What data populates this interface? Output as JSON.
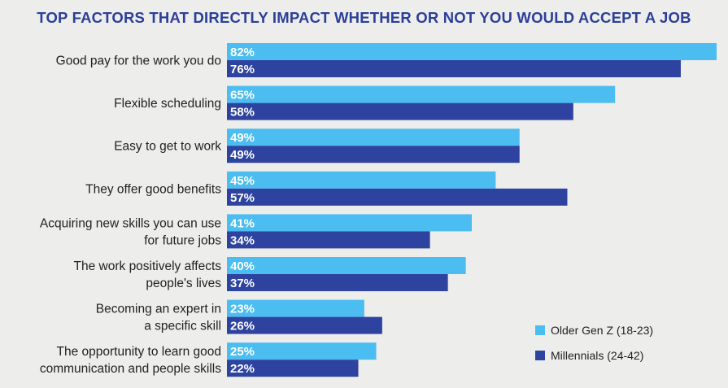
{
  "colors": {
    "title": "#2b3f99",
    "older_gen_z": "#4cbdf0",
    "millennials": "#2e43a0"
  },
  "chart_data": {
    "type": "bar",
    "orientation": "horizontal",
    "title": "TOP FACTORS THAT DIRECTLY IMPACT WHETHER OR NOT YOU WOULD ACCEPT A JOB",
    "value_suffix": "%",
    "xlim": [
      0,
      82
    ],
    "grid": false,
    "legend_position": "bottom-right",
    "categories": [
      [
        "Good pay for the work you do"
      ],
      [
        "Flexible scheduling"
      ],
      [
        "Easy to get to work"
      ],
      [
        "They offer good benefits"
      ],
      [
        "Acquiring new skills you can use",
        "for future jobs"
      ],
      [
        "The work positively affects",
        "people's lives"
      ],
      [
        "Becoming an expert in",
        "a specific skill"
      ],
      [
        "The opportunity to learn good",
        "communication and people skills"
      ]
    ],
    "series": [
      {
        "name": "Older Gen Z (18-23)",
        "color": "#4cbdf0",
        "values": [
          82,
          65,
          49,
          45,
          41,
          40,
          23,
          25
        ]
      },
      {
        "name": "Millennials (24-42)",
        "color": "#2e43a0",
        "values": [
          76,
          58,
          49,
          57,
          34,
          37,
          26,
          22
        ]
      }
    ]
  }
}
